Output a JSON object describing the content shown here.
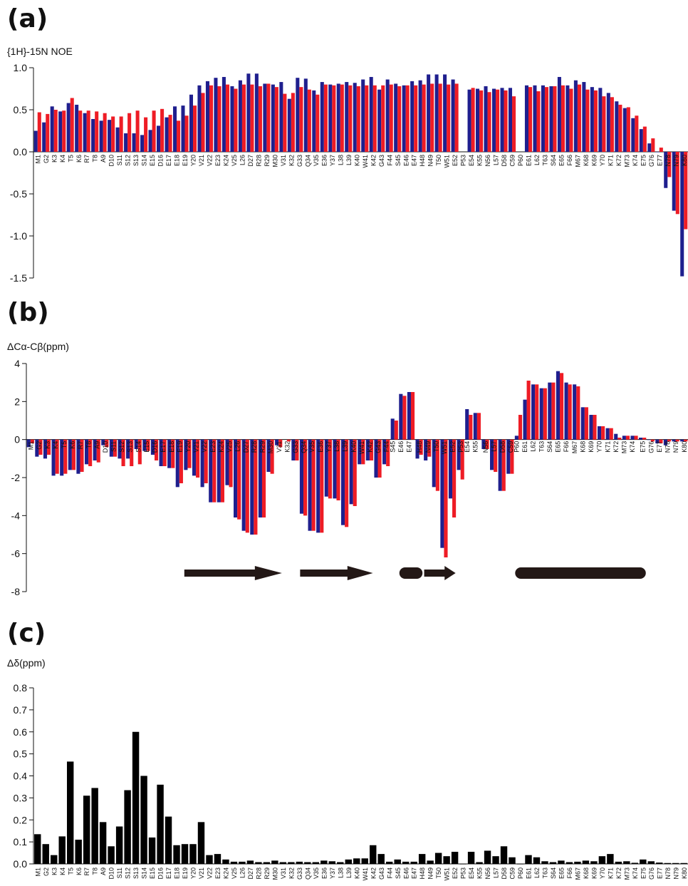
{
  "colors": {
    "blue": "#1f1f8e",
    "red": "#ee1c25",
    "black": "#000000",
    "axis": "#111111"
  },
  "panels": [
    {
      "letter": "(a)",
      "ylabel": "{1H}-15N NOE"
    },
    {
      "letter": "(b)",
      "ylabel": "ΔCα-Cβ(ppm)"
    },
    {
      "letter": "(c)",
      "ylabel": "Δδ(ppm)"
    }
  ],
  "chart_data": [
    {
      "type": "bar",
      "panel": "a",
      "ylabel": "{1H}-15N NOE",
      "ylim": [
        -1.5,
        1.0
      ],
      "yticks": [
        "1.0",
        "0.5",
        "0.0",
        "-0.5",
        "-1.0",
        "-1.5"
      ],
      "tick_values": [
        1.0,
        0.5,
        0.0,
        -0.5,
        -1.0,
        -1.5
      ],
      "categories": [
        "M1",
        "G2",
        "K3",
        "K4",
        "T5",
        "K6",
        "R7",
        "T8",
        "A9",
        "D10",
        "S11",
        "S12",
        "S13",
        "S14",
        "E15",
        "D16",
        "E17",
        "E18",
        "E19",
        "Y20",
        "V21",
        "V22",
        "E23",
        "K24",
        "V25",
        "L26",
        "D27",
        "R28",
        "R29",
        "M30",
        "V31",
        "K32",
        "G33",
        "Q34",
        "V35",
        "E36",
        "Y37",
        "L38",
        "L39",
        "K40",
        "W41",
        "K42",
        "G43",
        "F44",
        "S45",
        "E46",
        "E47",
        "H48",
        "N49",
        "T50",
        "W51",
        "E52",
        "P53",
        "E54",
        "K55",
        "N56",
        "L57",
        "D58",
        "C59",
        "P60",
        "E61",
        "L62",
        "T63",
        "S64",
        "E65",
        "F66",
        "M67",
        "K68",
        "K69",
        "Y70",
        "K71",
        "K72",
        "M73",
        "K74",
        "E75",
        "G76",
        "E77",
        "N78",
        "N79",
        "K80"
      ],
      "series": [
        {
          "color": "blue",
          "values": [
            0.25,
            0.35,
            0.54,
            0.48,
            0.58,
            0.56,
            0.46,
            0.39,
            0.37,
            0.38,
            0.29,
            0.22,
            0.22,
            0.2,
            0.26,
            0.31,
            0.41,
            0.54,
            0.55,
            0.68,
            0.79,
            0.84,
            0.88,
            0.89,
            0.78,
            0.85,
            0.93,
            0.93,
            0.81,
            0.8,
            0.83,
            0.63,
            0.88,
            0.87,
            0.73,
            0.83,
            0.8,
            0.81,
            0.83,
            0.82,
            0.86,
            0.89,
            0.74,
            0.86,
            0.81,
            0.79,
            0.84,
            0.85,
            0.92,
            0.92,
            0.92,
            0.86,
            null,
            0.74,
            0.75,
            0.78,
            0.75,
            0.76,
            0.76,
            null,
            0.79,
            0.79,
            0.79,
            0.78,
            0.89,
            0.79,
            0.85,
            0.83,
            0.77,
            0.76,
            0.7,
            0.6,
            0.52,
            0.4,
            0.27,
            0.1,
            0.0,
            -0.43,
            -0.7,
            -1.48
          ]
        },
        {
          "color": "red",
          "values": [
            0.47,
            0.45,
            0.5,
            0.49,
            0.64,
            0.49,
            0.49,
            0.48,
            0.46,
            0.42,
            0.42,
            0.46,
            0.49,
            0.41,
            0.49,
            0.51,
            0.44,
            0.37,
            0.43,
            0.55,
            0.7,
            0.79,
            0.78,
            0.8,
            0.75,
            0.8,
            0.8,
            0.78,
            0.81,
            0.77,
            0.69,
            0.7,
            0.77,
            0.74,
            0.68,
            0.8,
            0.79,
            0.8,
            0.79,
            0.78,
            0.79,
            0.79,
            0.79,
            0.8,
            0.78,
            0.79,
            0.79,
            0.8,
            0.81,
            0.81,
            0.8,
            0.81,
            null,
            0.76,
            0.73,
            0.71,
            0.74,
            0.73,
            0.66,
            null,
            0.77,
            0.72,
            0.77,
            0.78,
            0.79,
            0.75,
            0.8,
            0.74,
            0.73,
            0.66,
            0.65,
            0.56,
            0.53,
            0.43,
            0.3,
            0.16,
            0.05,
            -0.3,
            -0.74,
            -0.92
          ]
        }
      ]
    },
    {
      "type": "bar",
      "panel": "b",
      "ylabel": "ΔCα-Cβ(ppm)",
      "ylim": [
        -8,
        4
      ],
      "yticks": [
        "4",
        "2",
        "0",
        "-2",
        "-4",
        "-6",
        "-8"
      ],
      "tick_values": [
        4,
        2,
        0,
        -2,
        -4,
        -6,
        -8
      ],
      "categories": [
        "M1",
        "G2",
        "K3",
        "K4",
        "T5",
        "K6",
        "R7",
        "T8",
        "A9",
        "D10",
        "S11",
        "S12",
        "S13",
        "S14",
        "E15",
        "D16",
        "E17",
        "E18",
        "E19",
        "Y20",
        "V21",
        "V22",
        "E23",
        "K24",
        "V25",
        "L26",
        "D27",
        "R28",
        "R29",
        "M30",
        "V31",
        "K32",
        "G33",
        "Q34",
        "V35",
        "E36",
        "Y37",
        "L38",
        "L39",
        "K40",
        "W41",
        "K42",
        "G43",
        "F44",
        "S45",
        "E46",
        "E47",
        "H48",
        "N49",
        "T50",
        "W51",
        "E52",
        "P53",
        "E54",
        "K55",
        "N56",
        "L57",
        "D58",
        "C59",
        "P60",
        "E61",
        "L62",
        "T63",
        "S64",
        "E65",
        "F66",
        "M67",
        "K68",
        "K69",
        "Y70",
        "K71",
        "K72",
        "M73",
        "K74",
        "E75",
        "G76",
        "E77",
        "N78",
        "N79",
        "K80"
      ],
      "series": [
        {
          "color": "blue",
          "values": [
            -0.4,
            -0.9,
            -1.0,
            -1.9,
            -1.9,
            -1.6,
            -1.8,
            -1.3,
            -1.1,
            -0.3,
            -0.9,
            -1.0,
            -1.0,
            -0.5,
            -0.6,
            -0.8,
            -1.4,
            -1.5,
            -2.5,
            -1.6,
            -1.9,
            -2.5,
            -3.3,
            -3.3,
            -2.4,
            -4.1,
            -4.8,
            -5.0,
            -4.1,
            -1.7,
            -0.3,
            null,
            -1.1,
            -3.9,
            -4.8,
            -4.9,
            -3.0,
            -3.1,
            -4.5,
            -3.4,
            -1.3,
            -1.1,
            -2.0,
            -1.3,
            1.1,
            2.4,
            2.5,
            -1.0,
            -1.1,
            -2.5,
            -5.7,
            -3.1,
            -1.6,
            1.6,
            1.4,
            -0.5,
            -1.6,
            -2.7,
            -1.8,
            0.2,
            2.1,
            2.9,
            2.7,
            3.0,
            3.6,
            3.0,
            2.9,
            1.7,
            1.3,
            0.7,
            0.6,
            0.3,
            0.2,
            0.2,
            0.1,
            0.0,
            -0.2,
            -0.3,
            -0.1,
            -0.1
          ]
        },
        {
          "color": "red",
          "values": [
            -0.2,
            -0.8,
            -0.8,
            -1.8,
            -1.8,
            -1.6,
            -1.7,
            -1.4,
            -1.2,
            -0.4,
            -0.9,
            -1.4,
            -1.4,
            -1.3,
            -0.6,
            -1.1,
            -1.4,
            -1.5,
            -2.3,
            -1.5,
            -2.0,
            -2.3,
            -3.3,
            -3.3,
            -2.5,
            -4.2,
            -4.9,
            -5.0,
            -4.1,
            -1.8,
            -0.4,
            -0.1,
            -1.1,
            -4.0,
            -4.8,
            -4.9,
            -3.1,
            -3.2,
            -4.6,
            -3.5,
            -1.3,
            -1.1,
            -2.0,
            -1.4,
            1.0,
            2.3,
            2.5,
            -0.8,
            -0.9,
            -2.7,
            -6.2,
            -4.1,
            -2.1,
            1.3,
            1.4,
            -0.5,
            -1.7,
            -2.7,
            -1.8,
            1.3,
            3.1,
            2.9,
            2.7,
            3.0,
            3.5,
            2.9,
            2.8,
            1.7,
            1.3,
            0.7,
            0.6,
            0.1,
            0.2,
            0.2,
            0.1,
            -0.1,
            -0.2,
            -0.1,
            -0.1,
            -0.1
          ]
        }
      ],
      "secondary_structure": [
        {
          "type": "strand",
          "from": "Y20",
          "to": "V31"
        },
        {
          "type": "strand",
          "from": "Q34",
          "to": "K42"
        },
        {
          "type": "helix",
          "from": "E46",
          "to": "H48"
        },
        {
          "type": "strand",
          "from": "N49",
          "to": "E52"
        },
        {
          "type": "helix",
          "from": "P60",
          "to": "E75"
        }
      ]
    },
    {
      "type": "bar",
      "panel": "c",
      "ylabel": "Δδ(ppm)",
      "ylim": [
        0,
        0.8
      ],
      "yticks": [
        "0.8",
        "0.7",
        "0.6",
        "0.5",
        "0.4",
        "0.3",
        "0.2",
        "0.1",
        "0.0"
      ],
      "tick_values": [
        0.8,
        0.7,
        0.6,
        0.5,
        0.4,
        0.3,
        0.2,
        0.1,
        0.0
      ],
      "categories": [
        "M1",
        "G2",
        "K3",
        "K4",
        "T5",
        "K6",
        "R7",
        "T8",
        "A9",
        "D10",
        "S11",
        "S12",
        "S13",
        "S14",
        "E15",
        "D16",
        "E17",
        "E18",
        "E19",
        "Y20",
        "V21",
        "V22",
        "E23",
        "K24",
        "V25",
        "L26",
        "D27",
        "R28",
        "R29",
        "M30",
        "V31",
        "K32",
        "G33",
        "Q34",
        "V35",
        "E36",
        "Y37",
        "L38",
        "L39",
        "K40",
        "W41",
        "K42",
        "G43",
        "F44",
        "S45",
        "E46",
        "E47",
        "H48",
        "N49",
        "T50",
        "W51",
        "E52",
        "P53",
        "E54",
        "K55",
        "N56",
        "L57",
        "D58",
        "C59",
        "P60",
        "E61",
        "L62",
        "T63",
        "S64",
        "E65",
        "F66",
        "M67",
        "K68",
        "K69",
        "Y70",
        "K71",
        "K72",
        "M73",
        "K74",
        "E75",
        "G76",
        "E77",
        "N78",
        "N79",
        "K80"
      ],
      "series": [
        {
          "color": "black",
          "values": [
            0.135,
            0.09,
            0.04,
            0.125,
            0.465,
            0.11,
            0.31,
            0.345,
            0.19,
            0.08,
            0.17,
            0.335,
            0.6,
            0.4,
            0.12,
            0.36,
            0.215,
            0.085,
            0.09,
            0.09,
            0.19,
            0.04,
            0.045,
            0.02,
            0.01,
            0.01,
            0.015,
            0.008,
            0.008,
            0.015,
            0.008,
            0.008,
            0.01,
            0.008,
            0.008,
            0.015,
            0.012,
            0.008,
            0.02,
            0.025,
            0.025,
            0.085,
            0.045,
            0.01,
            0.02,
            0.01,
            0.01,
            0.045,
            0.015,
            0.05,
            0.035,
            0.055,
            0.0,
            0.055,
            0.008,
            0.06,
            0.035,
            0.08,
            0.03,
            0.0,
            0.04,
            0.03,
            0.012,
            0.008,
            0.015,
            0.008,
            0.01,
            0.015,
            0.012,
            0.035,
            0.045,
            0.01,
            0.012,
            0.005,
            0.02,
            0.012,
            0.006,
            0.004,
            0.004,
            0.004
          ]
        }
      ]
    }
  ]
}
